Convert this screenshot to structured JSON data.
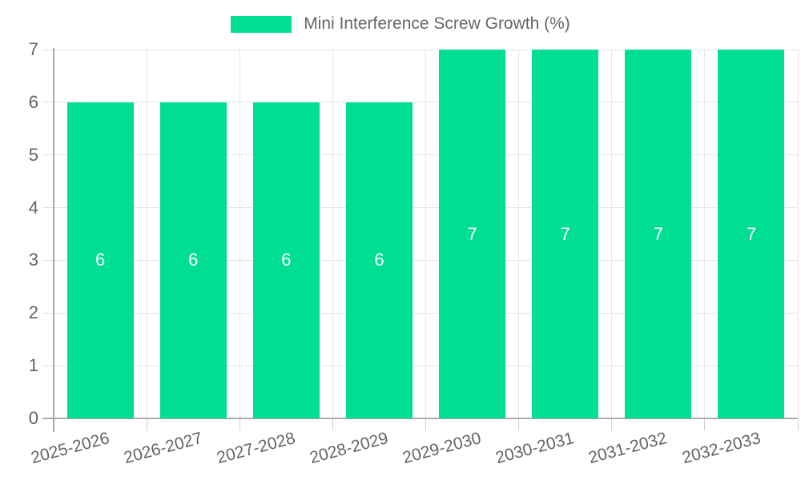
{
  "legend": {
    "label": "Mini Interference Screw Growth (%)"
  },
  "chart_data": {
    "type": "bar",
    "title": "",
    "xlabel": "",
    "ylabel": "",
    "categories": [
      "2025-2026",
      "2026-2027",
      "2027-2028",
      "2028-2029",
      "2029-2030",
      "2030-2031",
      "2031-2032",
      "2032-2033"
    ],
    "series": [
      {
        "name": "Mini Interference Screw Growth (%)",
        "values": [
          6,
          6,
          6,
          6,
          7,
          7,
          7,
          7
        ]
      }
    ],
    "data_labels": [
      "6",
      "6",
      "6",
      "6",
      "7",
      "7",
      "7",
      "7"
    ],
    "ylim": [
      0,
      7
    ],
    "yticks": [
      0,
      1,
      2,
      3,
      4,
      5,
      6,
      7
    ],
    "grid": true,
    "legend_position": "top",
    "colors": {
      "bar": "#00DE95",
      "data_label": "#FFFFFF",
      "axis_text": "#646464",
      "legend_text": "#666666",
      "gridline": "#E6E6E6",
      "axis_line": "#ABABAB",
      "background": "#FFFFFF"
    }
  }
}
